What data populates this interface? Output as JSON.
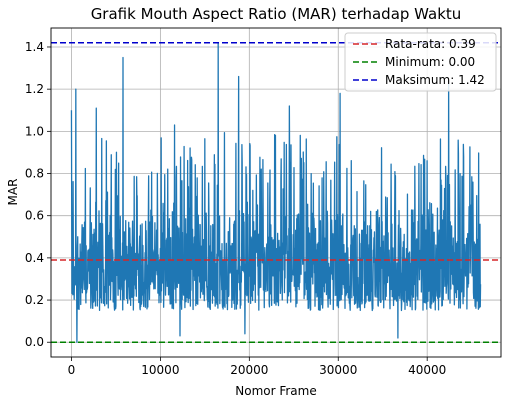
{
  "chart_data": {
    "type": "line",
    "title": "Grafik Mouth Aspect Ratio (MAR) terhadap Waktu",
    "xlabel": "Nomor Frame",
    "ylabel": "MAR",
    "xlim": [
      -2300,
      48300
    ],
    "ylim": [
      -0.07,
      1.49
    ],
    "x_ticks": [
      0,
      10000,
      20000,
      30000,
      40000
    ],
    "x_tick_labels": [
      "0",
      "10000",
      "20000",
      "30000",
      "40000"
    ],
    "y_ticks": [
      0.0,
      0.2,
      0.4,
      0.6,
      0.8,
      1.0,
      1.2,
      1.4
    ],
    "y_tick_labels": [
      "0.0",
      "0.2",
      "0.4",
      "0.6",
      "0.8",
      "1.0",
      "1.2",
      "1.4"
    ],
    "grid": true,
    "legend_position": "top-right",
    "series": [
      {
        "color": "#1f77b4",
        "x_range": [
          0,
          46000
        ],
        "peaks": [
          {
            "x": 0,
            "y": 1.1
          },
          {
            "x": 500,
            "y": 1.2
          },
          {
            "x": 2800,
            "y": 1.11
          },
          {
            "x": 5800,
            "y": 1.35
          },
          {
            "x": 11600,
            "y": 1.03
          },
          {
            "x": 16500,
            "y": 1.42
          },
          {
            "x": 18800,
            "y": 1.26
          },
          {
            "x": 24500,
            "y": 1.12
          },
          {
            "x": 30200,
            "y": 1.18
          },
          {
            "x": 42400,
            "y": 1.24
          }
        ],
        "troughs": [
          {
            "x": 600,
            "y": 0.0
          },
          {
            "x": 12200,
            "y": 0.03
          },
          {
            "x": 19500,
            "y": 0.04
          },
          {
            "x": 36700,
            "y": 0.02
          }
        ],
        "typical_band": [
          0.15,
          0.65
        ]
      }
    ],
    "reference_lines": [
      {
        "label": "Rata-rata: 0.39",
        "value": 0.39,
        "color": "#d62728",
        "style": "dashed"
      },
      {
        "label": "Minimum: 0.00",
        "value": 0.0,
        "color": "#008000",
        "style": "dashed"
      },
      {
        "label": "Maksimum: 1.42",
        "value": 1.42,
        "color": "#0000cc",
        "style": "dashed"
      }
    ]
  }
}
